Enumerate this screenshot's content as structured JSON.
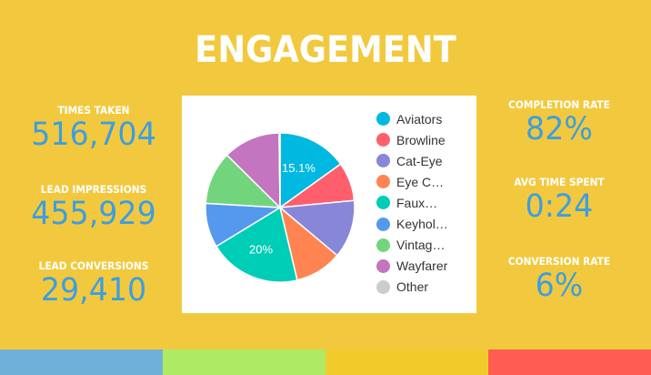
{
  "header": {
    "title": "ENGAGEMENT"
  },
  "left_stats": [
    {
      "label": "TIMES TAKEN",
      "value": "516,704"
    },
    {
      "label": "LEAD IMPRESSIONS",
      "value": "455,929"
    },
    {
      "label": "LEAD CONVERSIONS",
      "value": "29,410"
    }
  ],
  "right_stats": [
    {
      "label": "COMPLETION RATE",
      "value": "82%"
    },
    {
      "label": "AVG TIME SPENT",
      "value": "0:24"
    },
    {
      "label": "CONVERSION RATE",
      "value": "6%"
    }
  ],
  "colors": {
    "background": "#F2C93E",
    "title": "#FFFFFF",
    "stat_value": "#3D9EE0",
    "bottom_bar": [
      "#6FB0D8",
      "#AEEA64",
      "#F1CB2A",
      "#FF5C52"
    ]
  },
  "legend": [
    {
      "label": "Aviators",
      "color": "#00B8E0"
    },
    {
      "label": "Browline",
      "color": "#FF5F6D"
    },
    {
      "label": "Cat-Eye",
      "color": "#8886D8"
    },
    {
      "label": "Eye C…",
      "color": "#FF8452"
    },
    {
      "label": "Faux…",
      "color": "#00CDB5"
    },
    {
      "label": "Keyhol…",
      "color": "#5599EE"
    },
    {
      "label": "Vintag…",
      "color": "#72D57E"
    },
    {
      "label": "Wayfarer",
      "color": "#C475BF"
    },
    {
      "label": "Other",
      "color": "#CCCCCC"
    }
  ],
  "chart_data": {
    "type": "pie",
    "title": "",
    "categories": [
      "Aviators",
      "Browline",
      "Cat-Eye",
      "Eye C…",
      "Faux…",
      "Keyhol…",
      "Vintag…",
      "Wayfarer",
      "Other"
    ],
    "values": [
      15.1,
      8.4,
      12.6,
      10.2,
      20.0,
      9.6,
      11.5,
      12.4,
      0.2
    ],
    "colors": [
      "#00B8E0",
      "#FF5F6D",
      "#8886D8",
      "#FF8452",
      "#00CDB5",
      "#5599EE",
      "#72D57E",
      "#C475BF",
      "#CCCCCC"
    ],
    "data_labels": [
      {
        "category": "Aviators",
        "text": "15.1%"
      },
      {
        "category": "Faux…",
        "text": "20%"
      }
    ],
    "legend_position": "right",
    "start_angle": 0,
    "direction": "clockwise"
  }
}
